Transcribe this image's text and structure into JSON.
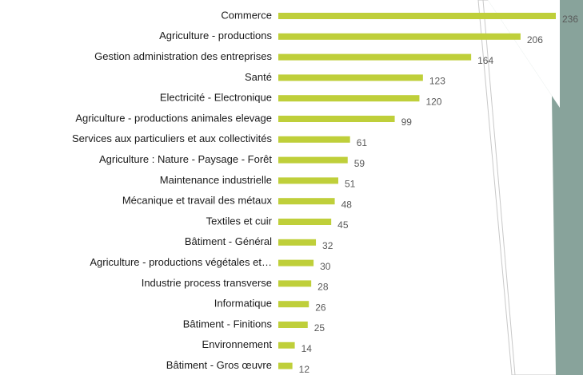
{
  "chart_data": {
    "type": "barh",
    "categories": [
      "Commerce",
      "Agriculture - productions",
      "Gestion administration des entreprises",
      "Santé",
      "Electricité - Electronique",
      "Agriculture - productions animales elevage",
      "Services aux particuliers et aux collectivités",
      "Agriculture : Nature - Paysage - Forêt",
      "Maintenance industrielle",
      "Mécanique et travail des métaux",
      "Textiles et cuir",
      "Bâtiment - Général",
      "Agriculture - productions végétales et…",
      "Industrie process transverse",
      "Informatique",
      "Bâtiment - Finitions",
      "Environnement",
      "Bâtiment - Gros œuvre"
    ],
    "values": [
      236,
      206,
      164,
      123,
      120,
      99,
      61,
      59,
      51,
      48,
      45,
      32,
      30,
      28,
      26,
      25,
      14,
      12
    ],
    "color": "#bfcf3a"
  }
}
